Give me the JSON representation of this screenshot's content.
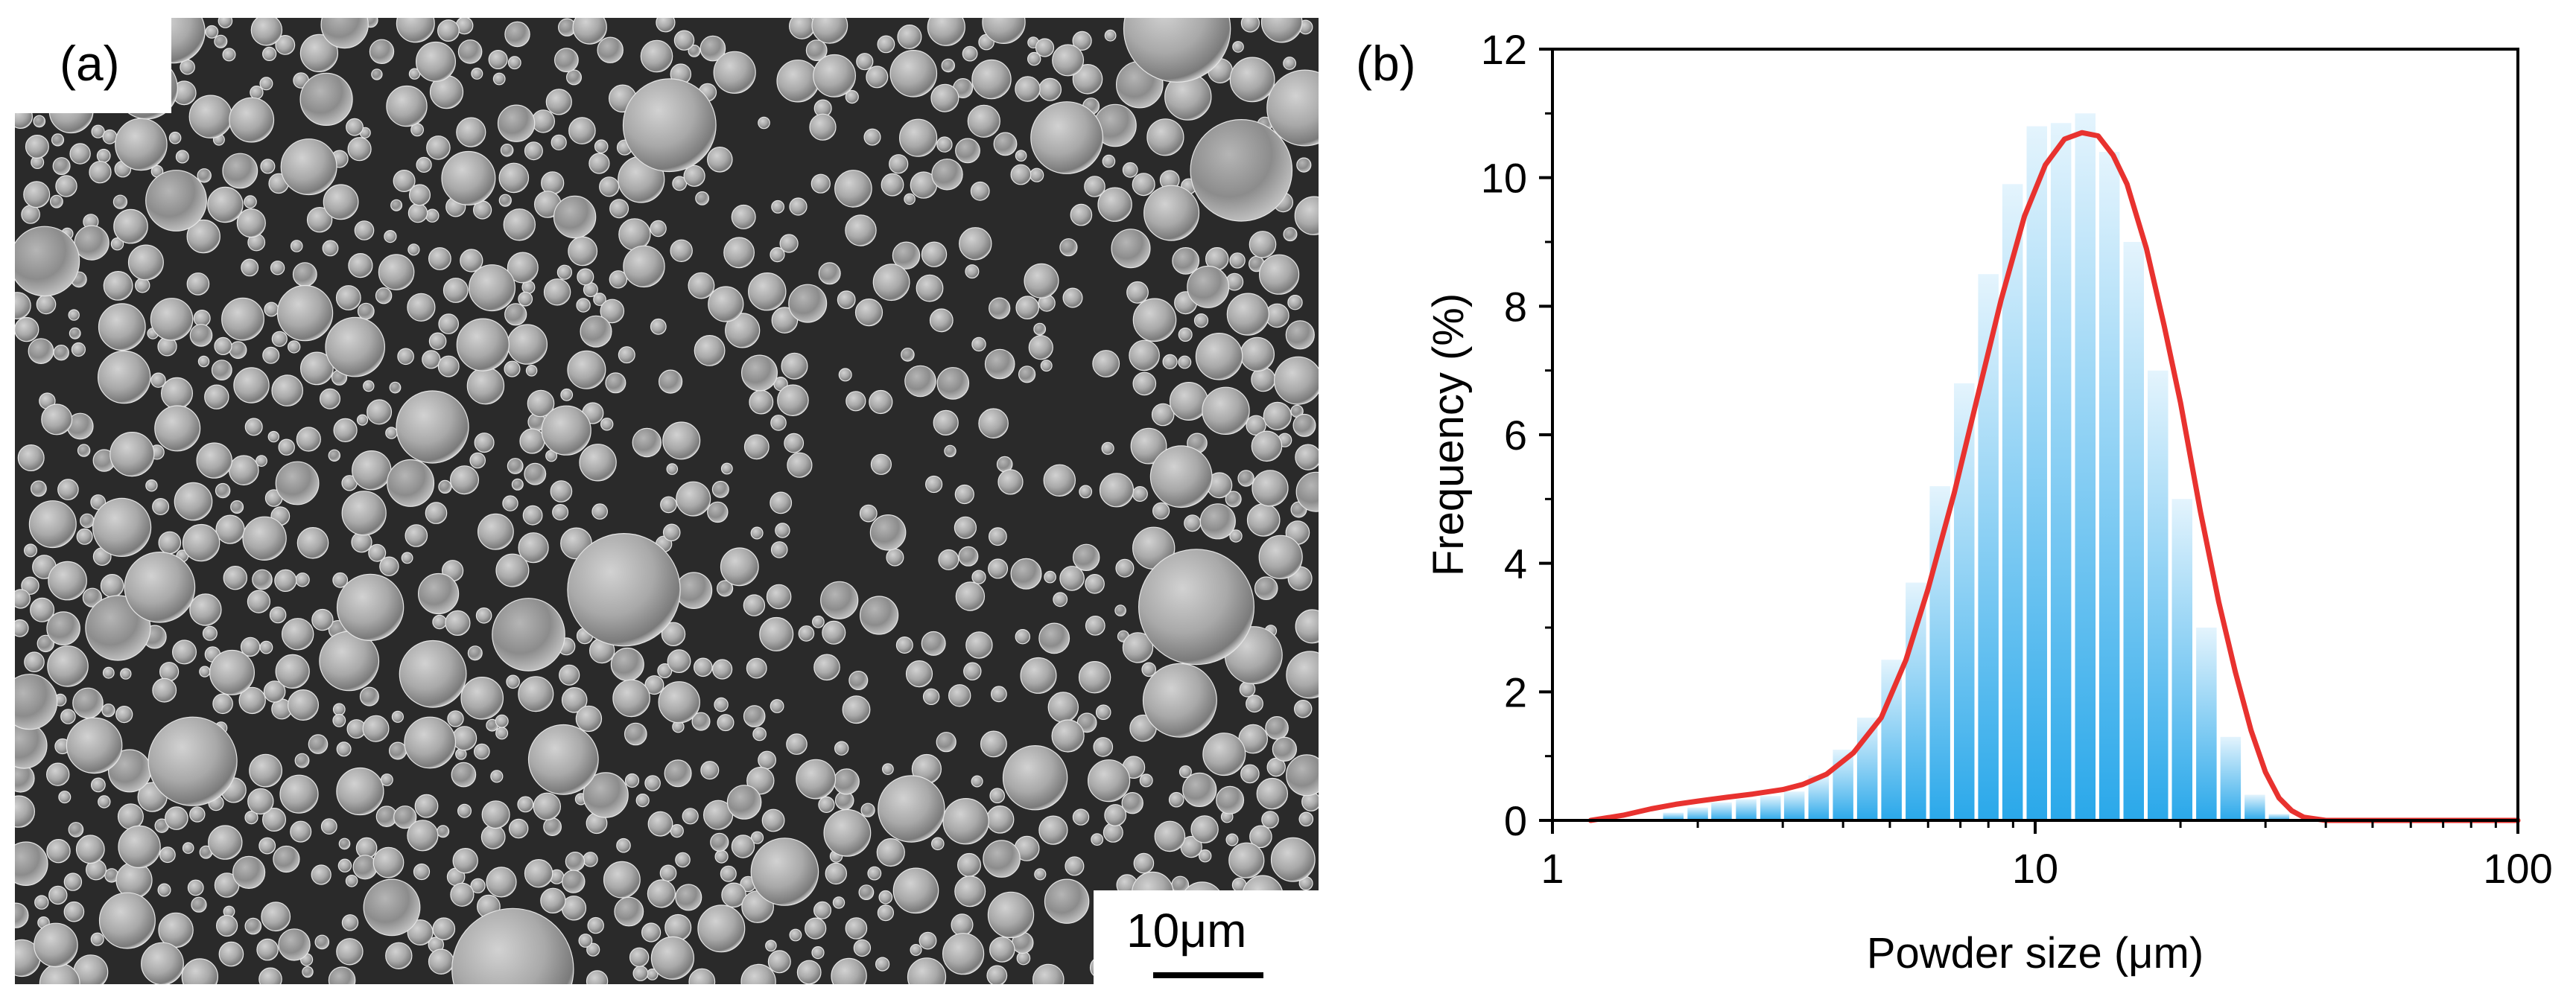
{
  "panels": {
    "a": {
      "label": "(a)",
      "scale_bar_label": "10μm"
    },
    "b": {
      "label": "(b)"
    }
  },
  "chart_data": {
    "type": "bar",
    "xlabel": "Powder size (μm)",
    "ylabel": "Frequency (%)",
    "x_scale": "log",
    "xlim": [
      1,
      100
    ],
    "ylim": [
      0,
      12
    ],
    "x_ticks": [
      1,
      10,
      100
    ],
    "x_tick_labels": [
      "1",
      "10",
      "100"
    ],
    "y_ticks": [
      0,
      2,
      4,
      6,
      8,
      10,
      12
    ],
    "y_tick_labels": [
      "0",
      "2",
      "4",
      "6",
      "8",
      "10",
      "12"
    ],
    "grid": false,
    "bar_color": "#2aa8ea",
    "curve_color": "#e8322f",
    "histogram": {
      "x": [
        1.78,
        2.0,
        2.24,
        2.52,
        2.83,
        3.17,
        3.56,
        4.0,
        4.49,
        5.04,
        5.66,
        6.35,
        7.13,
        8.0,
        8.98,
        10.08,
        11.31,
        12.7,
        14.25,
        16.0,
        17.96,
        20.16,
        22.63,
        25.4,
        28.51,
        32.0,
        35.92
      ],
      "values": [
        0.12,
        0.2,
        0.28,
        0.33,
        0.38,
        0.45,
        0.7,
        1.1,
        1.6,
        2.5,
        3.7,
        5.2,
        6.8,
        8.5,
        9.9,
        10.8,
        10.85,
        11.0,
        10.4,
        9.0,
        7.0,
        5.0,
        3.0,
        1.3,
        0.4,
        0.1,
        0.02
      ]
    },
    "fit_curve": {
      "x": [
        1.2,
        1.4,
        1.6,
        1.8,
        2.0,
        2.3,
        2.6,
        3.0,
        3.3,
        3.7,
        4.2,
        4.8,
        5.4,
        6.0,
        6.8,
        7.6,
        8.5,
        9.5,
        10.5,
        11.5,
        12.5,
        13.5,
        14.5,
        15.5,
        17.0,
        18.5,
        20.0,
        22.0,
        24.0,
        26.0,
        28.0,
        30.0,
        32.0,
        34.0,
        36.0,
        40.0,
        45.0,
        50.0,
        60.0,
        80.0,
        100.0
      ],
      "y": [
        0.0,
        0.08,
        0.18,
        0.25,
        0.3,
        0.36,
        0.41,
        0.48,
        0.56,
        0.72,
        1.05,
        1.6,
        2.5,
        3.6,
        5.1,
        6.6,
        8.1,
        9.4,
        10.2,
        10.6,
        10.7,
        10.65,
        10.35,
        9.9,
        8.9,
        7.7,
        6.5,
        4.8,
        3.4,
        2.3,
        1.4,
        0.75,
        0.35,
        0.15,
        0.05,
        0.0,
        0.0,
        0.0,
        0.0,
        0.0,
        0.0
      ]
    }
  }
}
